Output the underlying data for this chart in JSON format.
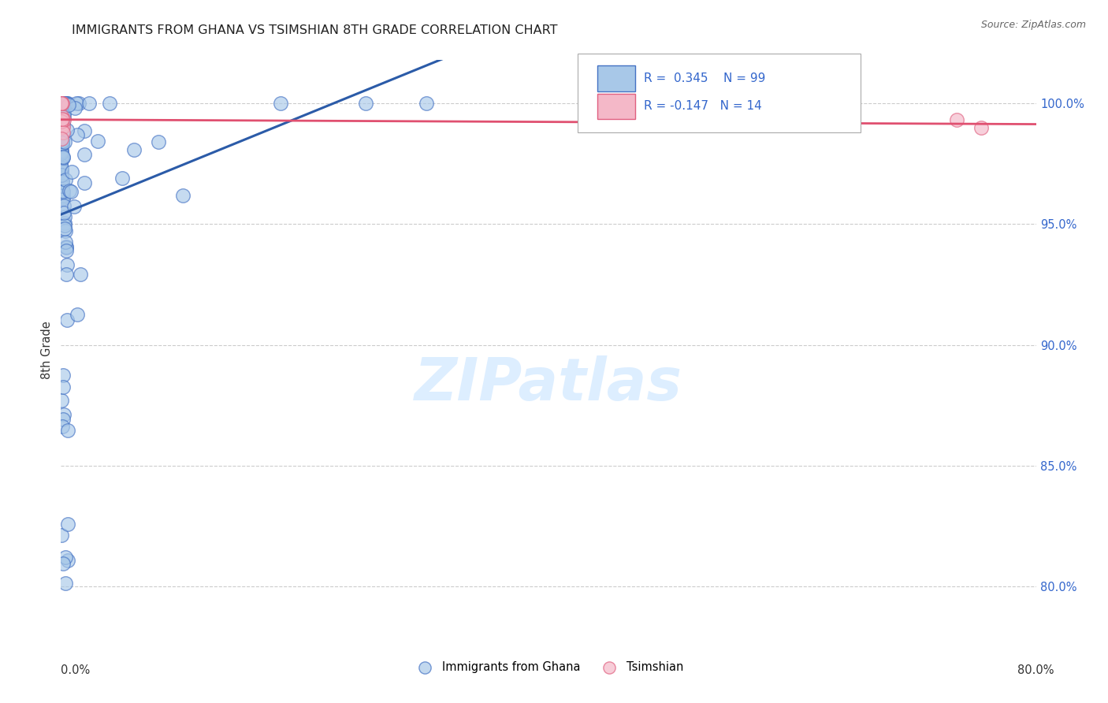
{
  "title": "IMMIGRANTS FROM GHANA VS TSIMSHIAN 8TH GRADE CORRELATION CHART",
  "source": "Source: ZipAtlas.com",
  "ylabel": "8th Grade",
  "ytick_labels": [
    "80.0%",
    "85.0%",
    "90.0%",
    "95.0%",
    "100.0%"
  ],
  "ytick_values": [
    0.8,
    0.85,
    0.9,
    0.95,
    1.0
  ],
  "xlim": [
    0.0,
    0.8
  ],
  "ylim": [
    0.778,
    1.018
  ],
  "legend_label1": "Immigrants from Ghana",
  "legend_label2": "Tsimshian",
  "R1": 0.345,
  "N1": 99,
  "R2": -0.147,
  "N2": 14,
  "color_ghana_fill": "#a8c8e8",
  "color_ghana_edge": "#4472c4",
  "color_tsimshian_fill": "#f4b8c8",
  "color_tsimshian_edge": "#e06080",
  "color_ghana_line": "#2b5ba8",
  "color_tsimshian_line": "#e05070",
  "watermark_color": "#ddeeff",
  "grid_color": "#cccccc",
  "ytick_color": "#3366cc",
  "title_color": "#222222",
  "source_color": "#666666",
  "xlabel_color": "#333333"
}
